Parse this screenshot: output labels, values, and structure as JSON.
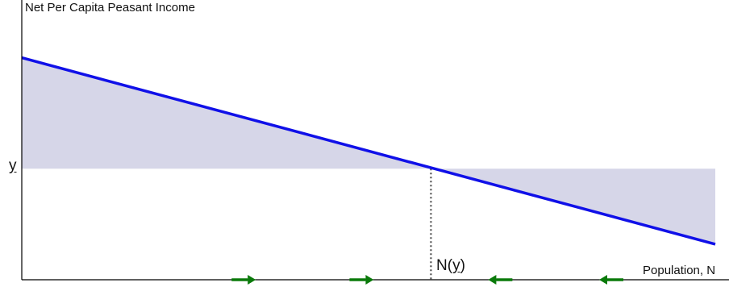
{
  "axes": {
    "y_label": "Net Per Capita Peasant Income",
    "x_label": "Population, N"
  },
  "markers": {
    "subsistence_income": "y",
    "equilibrium_prefix": "N(",
    "equilibrium_var": "y",
    "equilibrium_suffix": ")"
  },
  "chart_data": {
    "type": "line",
    "lines": [
      {
        "name": "",
        "role": "income-curve",
        "x": [
          0,
          100
        ],
        "y": [
          100,
          16
        ]
      },
      {
        "name": "",
        "role": "subsistence-level",
        "x": [
          0,
          100
        ],
        "y": [
          50,
          50
        ]
      }
    ],
    "equilibrium": {
      "x": 59,
      "y": 50
    },
    "arrows": [
      {
        "x": 32,
        "direction": "right"
      },
      {
        "x": 49,
        "direction": "right"
      },
      {
        "x": 69,
        "direction": "left"
      },
      {
        "x": 85,
        "direction": "left"
      }
    ],
    "xlim": [
      0,
      100
    ],
    "ylim": [
      0,
      126
    ],
    "grid": false
  },
  "colors": {
    "curve": "#1010e8",
    "shade": "#d6d6e8",
    "arrow": "#0a7a0a",
    "axis": "#000000",
    "dotted": "#666666"
  }
}
